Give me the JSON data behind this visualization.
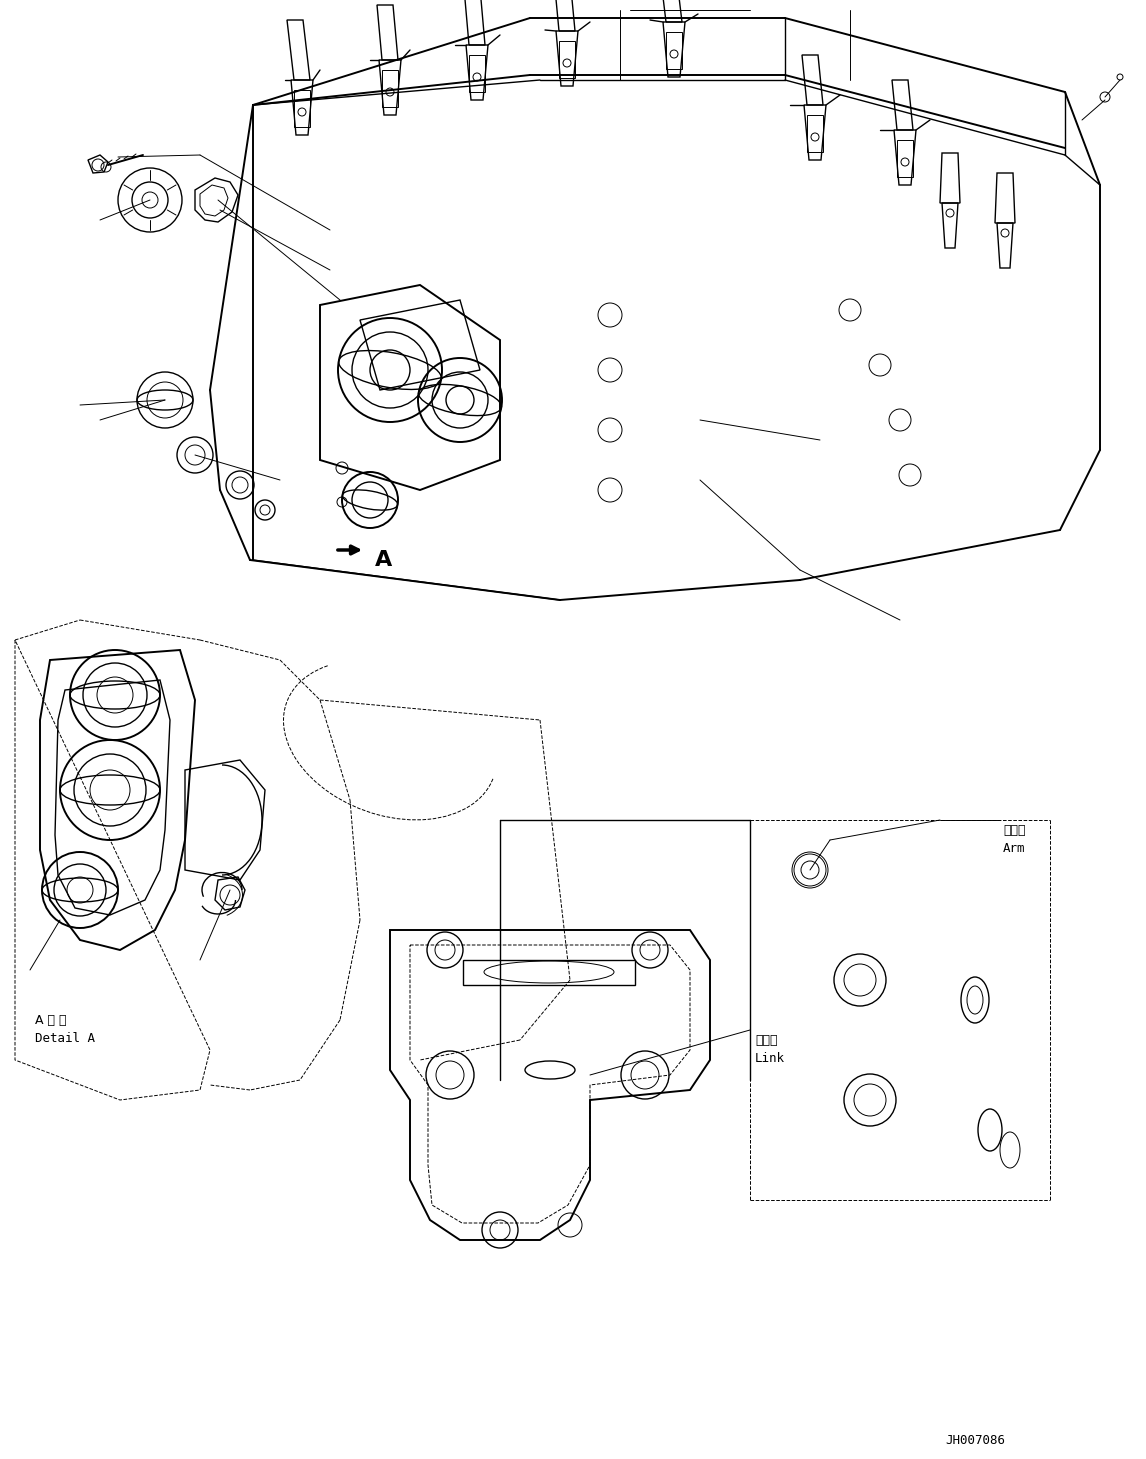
{
  "figure_width": 11.46,
  "figure_height": 14.59,
  "dpi": 100,
  "bg_color": "#ffffff",
  "line_color": "#000000",
  "lw_thin": 0.7,
  "lw_med": 1.0,
  "lw_thick": 1.4,
  "part_code": "JH007086",
  "label_detail_A_jp": "A 詳 細",
  "label_detail_A_en": "Detail A",
  "label_arm_jp": "アーム",
  "label_arm_en": "Arm",
  "label_link_jp": "リンク",
  "label_link_en": "Link"
}
